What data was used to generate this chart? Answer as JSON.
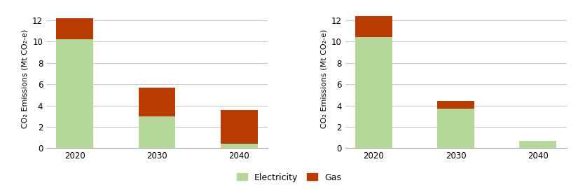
{
  "left": {
    "categories": [
      "2020",
      "2030",
      "2040"
    ],
    "electricity": [
      10.2,
      3.0,
      0.4
    ],
    "gas": [
      2.0,
      2.7,
      3.2
    ]
  },
  "right": {
    "categories": [
      "2020",
      "2030",
      "2040"
    ],
    "electricity": [
      10.4,
      3.7,
      0.7
    ],
    "gas": [
      2.0,
      0.7,
      0.0
    ]
  },
  "color_electricity": "#b5d89a",
  "color_gas": "#b83c00",
  "ylabel": "CO₂ Emissions (Mt CO₂-e)",
  "ylim": [
    0,
    13.0
  ],
  "yticks": [
    0,
    2,
    4,
    6,
    8,
    10,
    12
  ],
  "legend_labels": [
    "Electricity",
    "Gas"
  ],
  "bar_width": 0.45,
  "background_color": "#ffffff",
  "grid_color": "#cccccc",
  "figsize": [
    8.25,
    2.71
  ],
  "dpi": 100
}
